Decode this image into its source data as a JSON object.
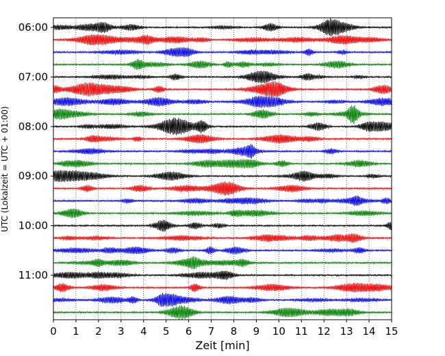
{
  "chart_data": {
    "type": "line",
    "subtype": "helicorder-seismogram",
    "title": "",
    "xlabel": "Zeit  [min]",
    "ylabel": "UTC (Lokalzeit = UTC + 01:00)",
    "xlim": [
      0,
      15
    ],
    "x_ticks": [
      0,
      1,
      2,
      3,
      4,
      5,
      6,
      7,
      8,
      9,
      10,
      11,
      12,
      13,
      14,
      15
    ],
    "y_ticks": [
      "06:00",
      "07:00",
      "08:00",
      "09:00",
      "10:00",
      "11:00"
    ],
    "grid": "vertical dotted at each minute",
    "trace_interval_minutes": 15,
    "trace_colors": [
      "#000000",
      "#ff0000",
      "#0000ff",
      "#008000"
    ],
    "traces": [
      {
        "start": "06:00"
      },
      {
        "start": "06:15"
      },
      {
        "start": "06:30"
      },
      {
        "start": "06:45"
      },
      {
        "start": "07:00"
      },
      {
        "start": "07:15"
      },
      {
        "start": "07:30"
      },
      {
        "start": "07:45"
      },
      {
        "start": "08:00"
      },
      {
        "start": "08:15"
      },
      {
        "start": "08:30"
      },
      {
        "start": "08:45"
      },
      {
        "start": "09:00"
      },
      {
        "start": "09:15"
      },
      {
        "start": "09:30"
      },
      {
        "start": "09:45"
      },
      {
        "start": "10:00"
      },
      {
        "start": "10:15"
      },
      {
        "start": "10:30"
      },
      {
        "start": "10:45"
      },
      {
        "start": "11:00"
      },
      {
        "start": "11:15"
      },
      {
        "start": "11:30"
      },
      {
        "start": "11:45"
      }
    ]
  }
}
